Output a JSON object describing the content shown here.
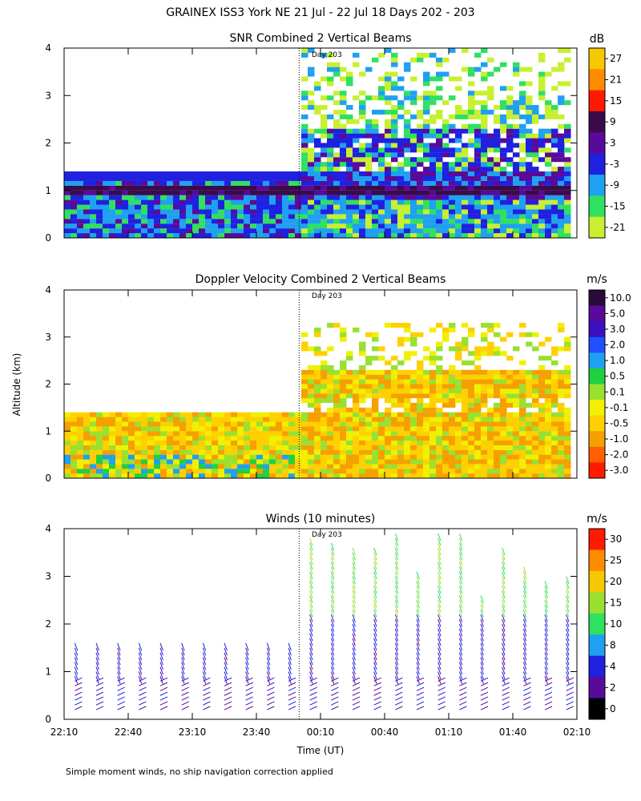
{
  "page_title": "GRAINEX ISS3 York NE  21 Jul - 22 Jul 18 Days 202 - 203",
  "footnote": "Simple moment winds, no ship navigation correction applied",
  "shared_axes": {
    "ylabel": "Altitude (km)",
    "xlabel": "Time (UT)",
    "xticks": [
      "22:10",
      "22:40",
      "23:10",
      "23:40",
      "00:10",
      "00:40",
      "01:10",
      "01:40",
      "02:10"
    ],
    "yticks": [
      "0",
      "1",
      "2",
      "3",
      "4"
    ],
    "day_marker_label": "Day 203",
    "day_marker_time": "00:00"
  },
  "colorbars": {
    "snr": {
      "unit": "dB",
      "labels": [
        "27",
        "21",
        "15",
        "9",
        "3",
        "-3",
        "-9",
        "-15",
        "-21"
      ],
      "colors": [
        "#f5c800",
        "#ff8c00",
        "#ff1a00",
        "#3a0a4a",
        "#5a0a9a",
        "#2020e0",
        "#20a0f0",
        "#30e060",
        "#c8f030"
      ]
    },
    "doppler": {
      "unit": "m/s",
      "labels": [
        "10.0",
        "5.0",
        "3.0",
        "2.0",
        "1.0",
        "0.5",
        "0.1",
        "-0.1",
        "-0.5",
        "-1.0",
        "-2.0",
        "-3.0"
      ],
      "colors": [
        "#2a0a3a",
        "#5a0a9a",
        "#3a10c0",
        "#2050ff",
        "#20a0f0",
        "#20d040",
        "#9ae030",
        "#f0f000",
        "#ffd000",
        "#f5a000",
        "#ff6000",
        "#ff1a00"
      ]
    },
    "winds": {
      "unit": "m/s",
      "labels": [
        "30",
        "25",
        "20",
        "15",
        "10",
        "8",
        "4",
        "2",
        "0"
      ],
      "colors": [
        "#ff1a00",
        "#ff8c00",
        "#f5c800",
        "#9ae030",
        "#30e060",
        "#20a0f0",
        "#2020e0",
        "#5a0a9a",
        "#000000"
      ]
    }
  },
  "chart_data": [
    {
      "type": "heatmap",
      "title": "SNR Combined 2 Vertical Beams",
      "xlabel": "",
      "ylabel": "Altitude (km)",
      "ylim": [
        0,
        4
      ],
      "colorbar_unit": "dB",
      "regions": [
        {
          "time_range": [
            "22:10",
            "00:00"
          ],
          "top_km": 1.4,
          "dominant": "-3 to 9 dB band near 1 km; -9 to -15 dB near surface"
        },
        {
          "time_range": [
            "00:00",
            "02:10"
          ],
          "top_km": 4.0,
          "dominant": "-21 to -3 dB layers; band near 1 km at 3 to 9 dB"
        }
      ]
    },
    {
      "type": "heatmap",
      "title": "Doppler Velocity Combined 2 Vertical Beams",
      "xlabel": "",
      "ylabel": "Altitude (km)",
      "ylim": [
        0,
        4
      ],
      "colorbar_unit": "m/s",
      "regions": [
        {
          "time_range": [
            "22:10",
            "00:00"
          ],
          "top_km": 1.4,
          "dominant": "-0.5 to 0.1 m/s"
        },
        {
          "time_range": [
            "00:00",
            "02:10"
          ],
          "top_km": 3.3,
          "dominant": "-1.0 to -0.1 m/s"
        }
      ]
    },
    {
      "type": "scatter",
      "title": "Winds (10 minutes)",
      "xlabel": "Time (UT)",
      "ylabel": "Altitude (km)",
      "ylim": [
        0,
        4
      ],
      "colorbar_unit": "m/s",
      "profile_times": [
        "22:15",
        "22:25",
        "22:35",
        "22:45",
        "22:55",
        "23:05",
        "23:15",
        "23:25",
        "23:35",
        "23:45",
        "23:55",
        "00:05",
        "00:15",
        "00:25",
        "00:35",
        "00:45",
        "00:55",
        "01:05",
        "01:15",
        "01:25",
        "01:35",
        "01:45",
        "01:55",
        "02:05"
      ],
      "profile_top_km": [
        1.7,
        1.7,
        1.7,
        1.7,
        1.7,
        1.7,
        1.7,
        1.7,
        1.7,
        1.7,
        1.7,
        3.9,
        3.8,
        3.7,
        3.7,
        4.0,
        3.2,
        4.0,
        4.0,
        2.7,
        3.7,
        3.3,
        3.0,
        3.1
      ],
      "speed_note": "low levels 0-8 m/s; upper levels 10-30 m/s"
    }
  ]
}
